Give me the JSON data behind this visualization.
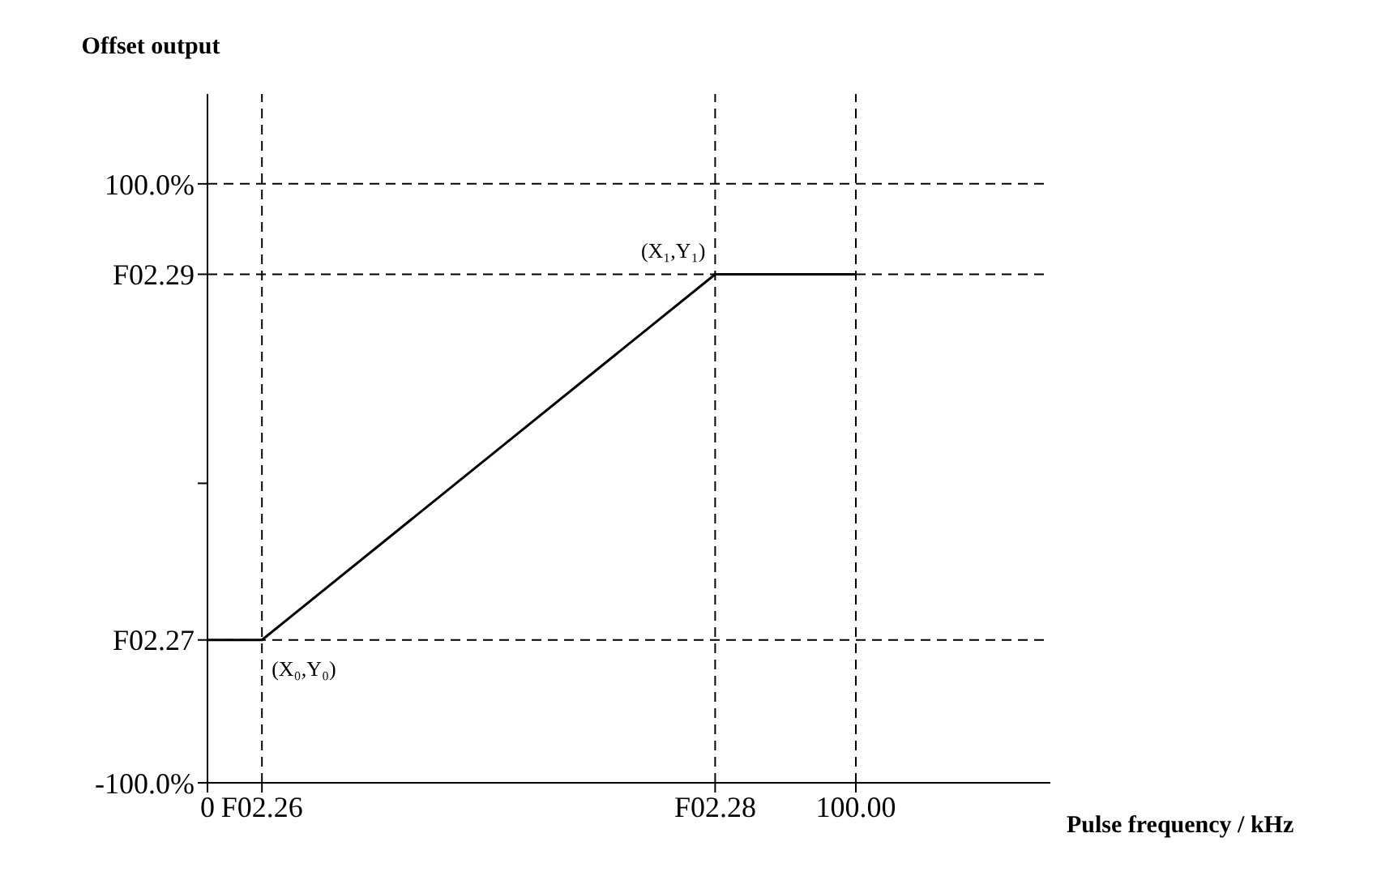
{
  "chart_data": {
    "type": "line",
    "xlabel": "Pulse frequency / kHz",
    "ylabel": "Offset output",
    "x": [
      0,
      8.4,
      78.3,
      100
    ],
    "series": [
      {
        "color": "#000000",
        "values": [
          -52.3,
          -52.3,
          69.8,
          69.8
        ]
      }
    ],
    "xlim": [
      0,
      130
    ],
    "ylim": [
      -100,
      130
    ],
    "xticks": [
      {
        "value": 0,
        "label": "0"
      },
      {
        "value": 8.4,
        "label": "F02.26"
      },
      {
        "value": 78.3,
        "label": "F02.28"
      },
      {
        "value": 100,
        "label": "100.00"
      }
    ],
    "yticks": [
      {
        "value": -100,
        "label": "-100.0%"
      },
      {
        "value": -52.3,
        "label": "F02.27"
      },
      {
        "value": 0,
        "label": null
      },
      {
        "value": 69.8,
        "label": "F02.29"
      },
      {
        "value": 100,
        "label": "100.0%"
      }
    ],
    "ref_lines": [
      {
        "axis": "y",
        "value": 100,
        "line_style": "dashed",
        "color": "#000000"
      },
      {
        "axis": "x",
        "value": 100,
        "line_style": "dashed",
        "color": "#000000"
      },
      {
        "axis": "x",
        "value": 8.4,
        "line_style": "dashed",
        "color": "#000000"
      },
      {
        "axis": "x",
        "value": 78.3,
        "line_style": "dashed",
        "color": "#000000"
      },
      {
        "axis": "y",
        "value": 69.8,
        "line_style": "dashed",
        "color": "#000000"
      },
      {
        "axis": "y",
        "value": -52.3,
        "line_style": "dashed",
        "color": "#000000"
      }
    ],
    "annotations": [
      {
        "text": "(X₀,Y₀)",
        "x": 8.4,
        "y": -52.3
      },
      {
        "text": "(X₁,Y₁)",
        "x": 78.3,
        "y": 69.8
      }
    ],
    "marker": "none",
    "line_style": "solid"
  }
}
